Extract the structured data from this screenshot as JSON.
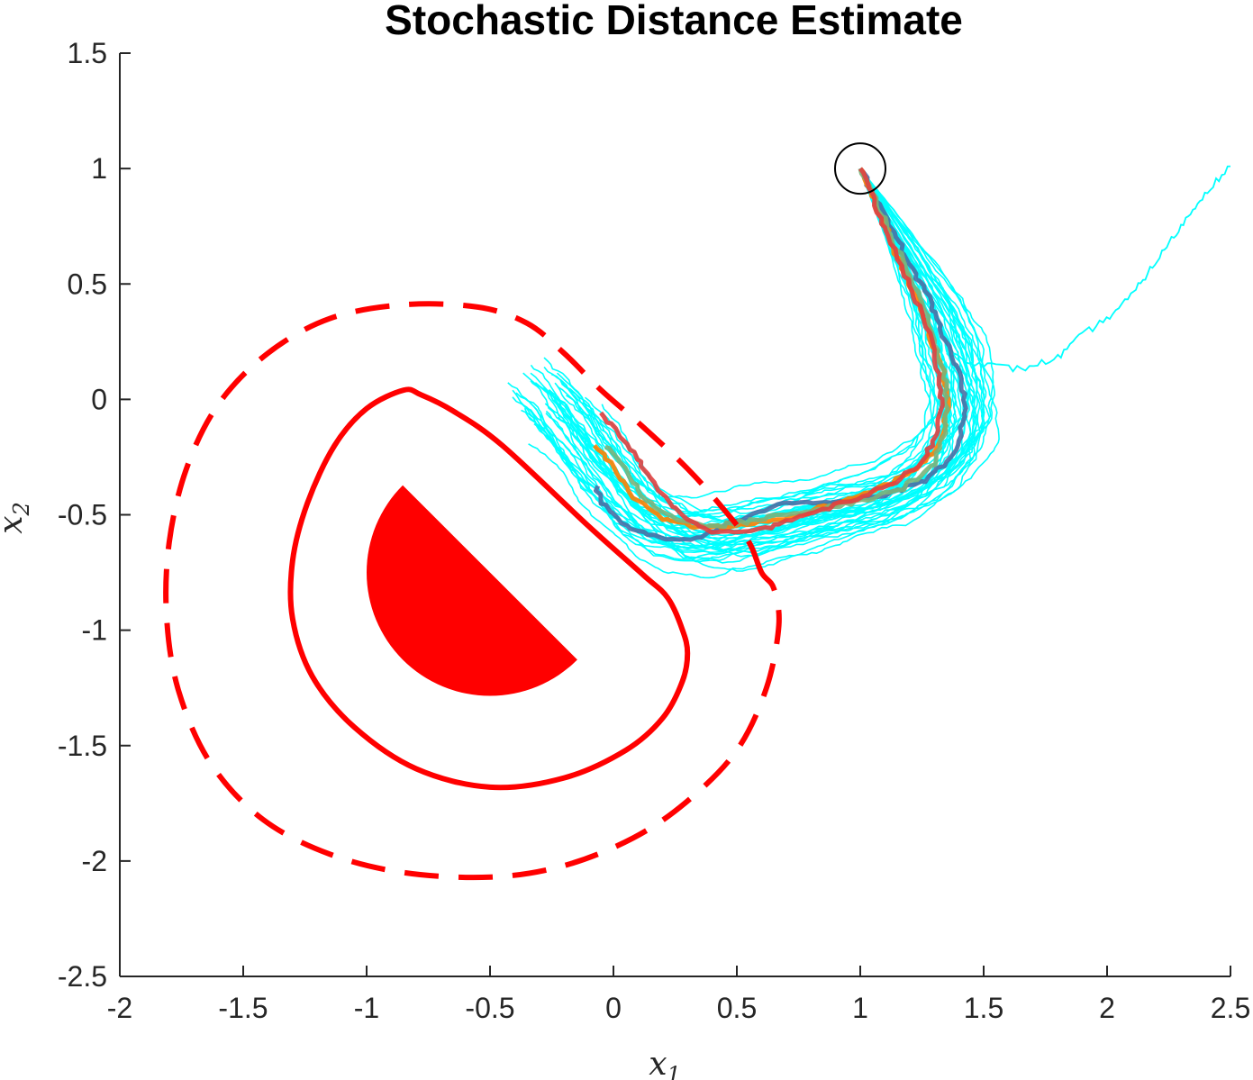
{
  "chart_data": {
    "type": "line",
    "title": "Stochastic Distance Estimate",
    "xlabel": "x",
    "xlabel_sub": "1",
    "ylabel": "x",
    "ylabel_sub": "2",
    "xlim": [
      -2,
      2.5
    ],
    "ylim": [
      -2.5,
      1.5
    ],
    "x_ticks": [
      -2,
      -1.5,
      -1,
      -0.5,
      0,
      0.5,
      1,
      1.5,
      2,
      2.5
    ],
    "x_tick_labels": [
      "-2",
      "-1.5",
      "-1",
      "-0.5",
      "0",
      "0.5",
      "1",
      "1.5",
      "2",
      "2.5"
    ],
    "y_ticks": [
      -2.5,
      -2,
      -1.5,
      -1,
      -0.5,
      0,
      0.5,
      1,
      1.5
    ],
    "y_tick_labels": [
      "-2.5",
      "-2",
      "-1.5",
      "-1",
      "-0.5",
      "0",
      "0.5",
      "1",
      "1.5"
    ],
    "grid": false,
    "colors": {
      "obstacle": "#ff0000",
      "trajectory_bundle": "#00ffff",
      "start_marker": "#000000",
      "highlight": [
        "#4a6fa5",
        "#ff8000",
        "#7ab37a",
        "#e04040"
      ]
    },
    "obstacle": {
      "type": "half-disk",
      "center": [
        -0.5,
        -0.75
      ],
      "radius": 0.5,
      "cut_angle_deg": 45
    },
    "safety_boundary": {
      "style": "solid",
      "points": [
        [
          -0.85,
          0.04
        ],
        [
          -0.78,
          0.02
        ],
        [
          -0.65,
          -0.05
        ],
        [
          -0.45,
          -0.2
        ],
        [
          -0.1,
          -0.55
        ],
        [
          0.12,
          -0.76
        ],
        [
          0.22,
          -0.86
        ],
        [
          0.28,
          -1.0
        ],
        [
          0.3,
          -1.1
        ],
        [
          0.28,
          -1.22
        ],
        [
          0.2,
          -1.38
        ],
        [
          0.05,
          -1.52
        ],
        [
          -0.2,
          -1.64
        ],
        [
          -0.5,
          -1.68
        ],
        [
          -0.8,
          -1.6
        ],
        [
          -1.05,
          -1.42
        ],
        [
          -1.22,
          -1.2
        ],
        [
          -1.3,
          -0.95
        ],
        [
          -1.3,
          -0.7
        ],
        [
          -1.24,
          -0.45
        ],
        [
          -1.13,
          -0.2
        ],
        [
          -1.0,
          -0.04
        ],
        [
          -0.85,
          0.04
        ]
      ]
    },
    "outer_boundary": {
      "style": "dashed",
      "points": [
        [
          0.6,
          -0.75
        ],
        [
          0.55,
          -0.62
        ],
        [
          0.45,
          -0.48
        ],
        [
          0.3,
          -0.3
        ],
        [
          0.1,
          -0.1
        ],
        [
          -0.05,
          0.04
        ],
        [
          -0.2,
          0.2
        ],
        [
          -0.35,
          0.33
        ],
        [
          -0.55,
          0.4
        ],
        [
          -0.85,
          0.41
        ],
        [
          -1.15,
          0.35
        ],
        [
          -1.4,
          0.2
        ],
        [
          -1.6,
          -0.02
        ],
        [
          -1.73,
          -0.3
        ],
        [
          -1.8,
          -0.62
        ],
        [
          -1.81,
          -0.95
        ],
        [
          -1.76,
          -1.27
        ],
        [
          -1.63,
          -1.58
        ],
        [
          -1.42,
          -1.82
        ],
        [
          -1.15,
          -1.97
        ],
        [
          -0.85,
          -2.05
        ],
        [
          -0.5,
          -2.07
        ],
        [
          -0.2,
          -2.02
        ],
        [
          0.08,
          -1.9
        ],
        [
          0.3,
          -1.74
        ],
        [
          0.5,
          -1.52
        ],
        [
          0.62,
          -1.25
        ],
        [
          0.67,
          -0.98
        ],
        [
          0.65,
          -0.82
        ],
        [
          0.6,
          -0.75
        ]
      ]
    },
    "start_marker": {
      "type": "circle",
      "center": [
        1.0,
        1.0
      ]
    },
    "trajectory_bundle": {
      "count": 40,
      "mean_path": [
        [
          1.0,
          1.0
        ],
        [
          1.1,
          0.8
        ],
        [
          1.2,
          0.6
        ],
        [
          1.3,
          0.4
        ],
        [
          1.37,
          0.2
        ],
        [
          1.41,
          0.0
        ],
        [
          1.4,
          -0.15
        ],
        [
          1.3,
          -0.3
        ],
        [
          1.15,
          -0.4
        ],
        [
          1.0,
          -0.45
        ],
        [
          0.8,
          -0.5
        ],
        [
          0.6,
          -0.55
        ],
        [
          0.4,
          -0.6
        ],
        [
          0.25,
          -0.58
        ],
        [
          0.12,
          -0.5
        ],
        [
          0.0,
          -0.35
        ],
        [
          -0.1,
          -0.2
        ],
        [
          -0.2,
          -0.05
        ],
        [
          -0.27,
          0.02
        ]
      ],
      "outlier_path": [
        [
          1.35,
          0.2
        ],
        [
          1.5,
          0.15
        ],
        [
          1.65,
          0.13
        ],
        [
          1.8,
          0.18
        ],
        [
          1.9,
          0.28
        ],
        [
          2.0,
          0.35
        ],
        [
          2.1,
          0.45
        ],
        [
          2.2,
          0.6
        ],
        [
          2.3,
          0.75
        ],
        [
          2.4,
          0.9
        ],
        [
          2.5,
          1.01
        ]
      ]
    },
    "highlight_series": [
      {
        "points": [
          [
            1.0,
            1.0
          ],
          [
            1.12,
            0.75
          ],
          [
            1.27,
            0.45
          ],
          [
            1.39,
            0.15
          ],
          [
            1.43,
            -0.05
          ],
          [
            1.39,
            -0.22
          ],
          [
            1.27,
            -0.35
          ],
          [
            1.1,
            -0.42
          ],
          [
            0.9,
            -0.45
          ],
          [
            0.7,
            -0.45
          ],
          [
            0.55,
            -0.5
          ],
          [
            0.35,
            -0.6
          ],
          [
            0.2,
            -0.6
          ],
          [
            0.05,
            -0.55
          ],
          [
            -0.05,
            -0.45
          ],
          [
            -0.07,
            -0.37
          ]
        ]
      },
      {
        "points": [
          [
            1.0,
            1.0
          ],
          [
            1.1,
            0.75
          ],
          [
            1.22,
            0.45
          ],
          [
            1.33,
            0.15
          ],
          [
            1.36,
            -0.05
          ],
          [
            1.31,
            -0.22
          ],
          [
            1.2,
            -0.32
          ],
          [
            1.05,
            -0.4
          ],
          [
            0.9,
            -0.45
          ],
          [
            0.75,
            -0.5
          ],
          [
            0.55,
            -0.54
          ],
          [
            0.38,
            -0.56
          ],
          [
            0.2,
            -0.52
          ],
          [
            0.08,
            -0.42
          ],
          [
            0.0,
            -0.3
          ],
          [
            -0.07,
            -0.2
          ]
        ]
      },
      {
        "points": [
          [
            1.0,
            1.0
          ],
          [
            1.12,
            0.72
          ],
          [
            1.25,
            0.42
          ],
          [
            1.34,
            0.12
          ],
          [
            1.35,
            -0.1
          ],
          [
            1.3,
            -0.28
          ],
          [
            1.18,
            -0.38
          ],
          [
            1.0,
            -0.44
          ],
          [
            0.8,
            -0.48
          ],
          [
            0.6,
            -0.52
          ],
          [
            0.4,
            -0.55
          ],
          [
            0.25,
            -0.52
          ],
          [
            0.12,
            -0.42
          ],
          [
            0.05,
            -0.3
          ],
          [
            -0.03,
            -0.2
          ]
        ]
      },
      {
        "points": [
          [
            1.0,
            1.0
          ],
          [
            1.08,
            0.8
          ],
          [
            1.18,
            0.55
          ],
          [
            1.28,
            0.28
          ],
          [
            1.33,
            0.05
          ],
          [
            1.32,
            -0.12
          ],
          [
            1.25,
            -0.28
          ],
          [
            1.1,
            -0.38
          ],
          [
            0.92,
            -0.45
          ],
          [
            0.72,
            -0.52
          ],
          [
            0.55,
            -0.58
          ],
          [
            0.4,
            -0.58
          ],
          [
            0.25,
            -0.48
          ],
          [
            0.12,
            -0.3
          ],
          [
            0.02,
            -0.15
          ],
          [
            -0.05,
            -0.05
          ]
        ]
      }
    ]
  }
}
